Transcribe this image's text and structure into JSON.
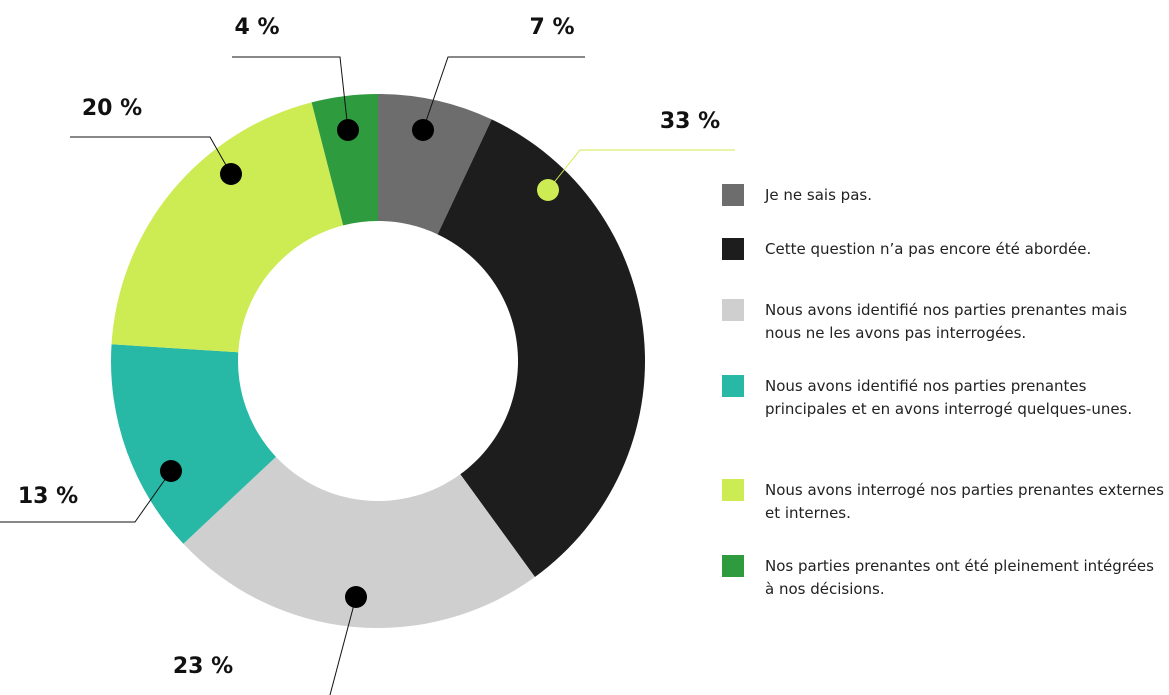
{
  "chart_data": {
    "type": "donut",
    "categories": [
      "Je ne sais pas.",
      "Cette question n’a pas encore été abordée.",
      "Nous avons identifié nos parties prenantes mais nous ne les avons pas interrogées.",
      "Nous avons identifié nos parties prenantes principales et en avons interrogé quelques-unes.",
      "Nous avons interrogé nos parties prenantes externes et internes.",
      "Nos parties prenantes ont été pleinement intégrées à nos décisions."
    ],
    "values": [
      7,
      33,
      23,
      13,
      20,
      4
    ],
    "value_labels": [
      "7 %",
      "33 %",
      "23 %",
      "13 %",
      "20 %",
      "4 %"
    ],
    "colors": [
      "#6d6d6d",
      "#1d1d1d",
      "#d0cfcf",
      "#27b9a6",
      "#cdeb52",
      "#2f9b3f"
    ]
  }
}
